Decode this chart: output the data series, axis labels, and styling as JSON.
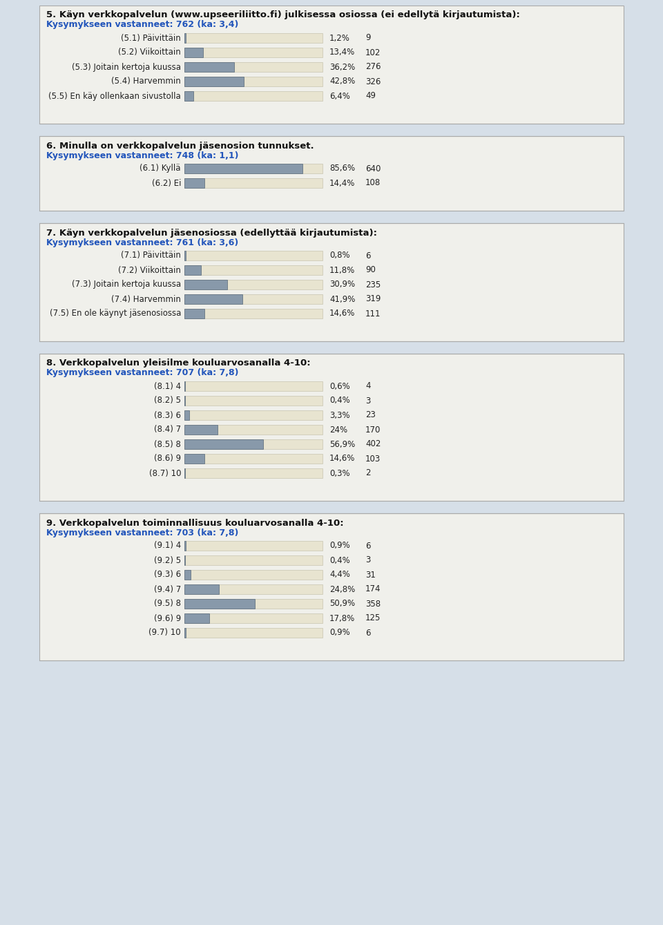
{
  "bg_color": "#d6dfe8",
  "panel_color": "#f0f0eb",
  "bar_bg_color": "#e8e4d0",
  "bar_fg_color": "#8899aa",
  "border_color": "#aaaaaa",
  "label_color": "#222222",
  "subtitle_color": "#2255bb",
  "title_color": "#111111",
  "title_fontsize": 9.5,
  "subtitle_fontsize": 9.0,
  "label_fontsize": 8.5,
  "value_fontsize": 8.5,
  "sections": [
    {
      "title": "5. Käyn verkkopalvelun (www.upseeriliitto.fi) julkisessa osiossa (ei edellytä kirjautumista):",
      "subtitle": "Kysymykseen vastanneet: 762 (ka: 3,4)",
      "items": [
        {
          "label": "(5.1) Päivittäin",
          "pct": 1.2,
          "pct_str": "1,2%",
          "n": 9
        },
        {
          "label": "(5.2) Viikoittain",
          "pct": 13.4,
          "pct_str": "13,4%",
          "n": 102
        },
        {
          "label": "(5.3) Joitain kertoja kuussa",
          "pct": 36.2,
          "pct_str": "36,2%",
          "n": 276
        },
        {
          "label": "(5.4) Harvemmin",
          "pct": 42.8,
          "pct_str": "42,8%",
          "n": 326
        },
        {
          "label": "(5.5) En käy ollenkaan sivustolla",
          "pct": 6.4,
          "pct_str": "6,4%",
          "n": 49
        }
      ]
    },
    {
      "title": "6. Minulla on verkkopalvelun jäsenosion tunnukset.",
      "subtitle": "Kysymykseen vastanneet: 748 (ka: 1,1)",
      "items": [
        {
          "label": "(6.1) Kyllä",
          "pct": 85.6,
          "pct_str": "85,6%",
          "n": 640
        },
        {
          "label": "(6.2) Ei",
          "pct": 14.4,
          "pct_str": "14,4%",
          "n": 108
        }
      ]
    },
    {
      "title": "7. Käyn verkkopalvelun jäsenosiossa (edellyttää kirjautumista):",
      "subtitle": "Kysymykseen vastanneet: 761 (ka: 3,6)",
      "items": [
        {
          "label": "(7.1) Päivittäin",
          "pct": 0.8,
          "pct_str": "0,8%",
          "n": 6
        },
        {
          "label": "(7.2) Viikoittain",
          "pct": 11.8,
          "pct_str": "11,8%",
          "n": 90
        },
        {
          "label": "(7.3) Joitain kertoja kuussa",
          "pct": 30.9,
          "pct_str": "30,9%",
          "n": 235
        },
        {
          "label": "(7.4) Harvemmin",
          "pct": 41.9,
          "pct_str": "41,9%",
          "n": 319
        },
        {
          "label": "(7.5) En ole käynyt jäsenosiossa",
          "pct": 14.6,
          "pct_str": "14,6%",
          "n": 111
        }
      ]
    },
    {
      "title": "8. Verkkopalvelun yleisilme kouluarvosanalla 4-10:",
      "subtitle": "Kysymykseen vastanneet: 707 (ka: 7,8)",
      "items": [
        {
          "label": "(8.1) 4",
          "pct": 0.6,
          "pct_str": "0,6%",
          "n": 4
        },
        {
          "label": "(8.2) 5",
          "pct": 0.4,
          "pct_str": "0,4%",
          "n": 3
        },
        {
          "label": "(8.3) 6",
          "pct": 3.3,
          "pct_str": "3,3%",
          "n": 23
        },
        {
          "label": "(8.4) 7",
          "pct": 24.0,
          "pct_str": "24%",
          "n": 170
        },
        {
          "label": "(8.5) 8",
          "pct": 56.9,
          "pct_str": "56,9%",
          "n": 402
        },
        {
          "label": "(8.6) 9",
          "pct": 14.6,
          "pct_str": "14,6%",
          "n": 103
        },
        {
          "label": "(8.7) 10",
          "pct": 0.3,
          "pct_str": "0,3%",
          "n": 2
        }
      ]
    },
    {
      "title": "9. Verkkopalvelun toiminnallisuus kouluarvosanalla 4-10:",
      "subtitle": "Kysymykseen vastanneet: 703 (ka: 7,8)",
      "items": [
        {
          "label": "(9.1) 4",
          "pct": 0.9,
          "pct_str": "0,9%",
          "n": 6
        },
        {
          "label": "(9.2) 5",
          "pct": 0.4,
          "pct_str": "0,4%",
          "n": 3
        },
        {
          "label": "(9.3) 6",
          "pct": 4.4,
          "pct_str": "4,4%",
          "n": 31
        },
        {
          "label": "(9.4) 7",
          "pct": 24.8,
          "pct_str": "24,8%",
          "n": 174
        },
        {
          "label": "(9.5) 8",
          "pct": 50.9,
          "pct_str": "50,9%",
          "n": 358
        },
        {
          "label": "(9.6) 9",
          "pct": 17.8,
          "pct_str": "17,8%",
          "n": 125
        },
        {
          "label": "(9.7) 10",
          "pct": 0.9,
          "pct_str": "0,9%",
          "n": 6
        }
      ]
    }
  ]
}
